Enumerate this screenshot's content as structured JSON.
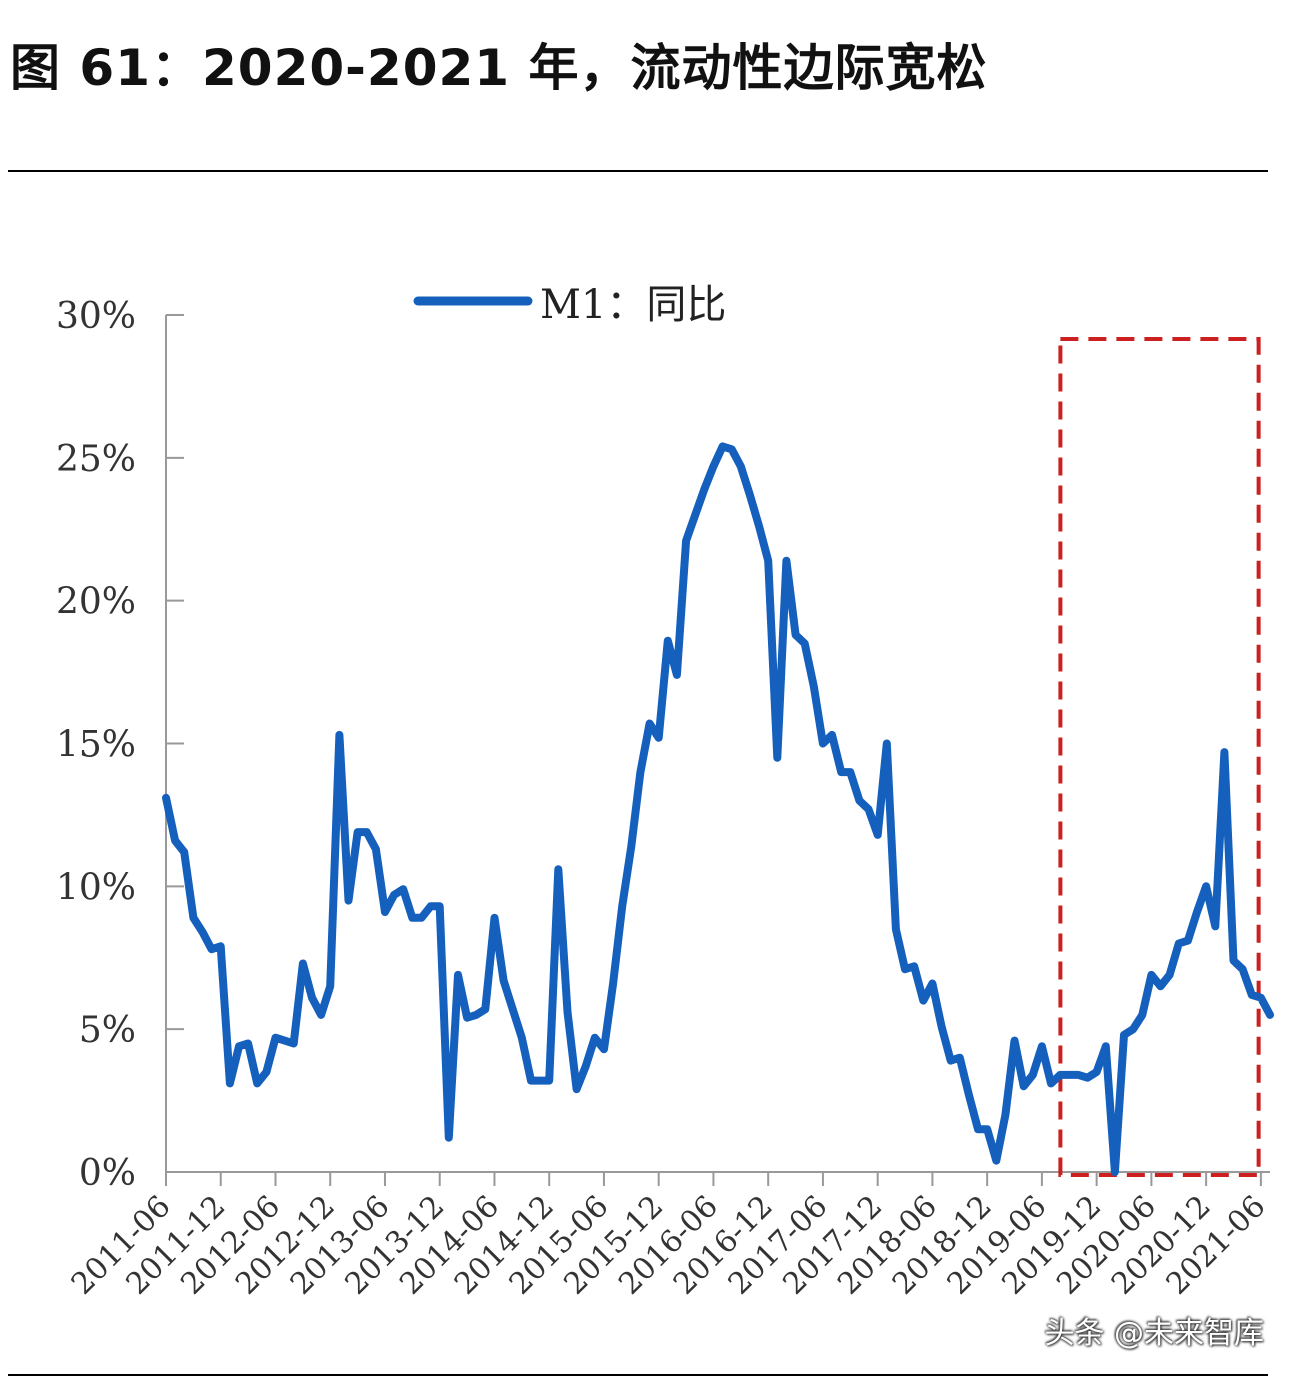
{
  "figure": {
    "title": "图 61：2020-2021 年，流动性边际宽松"
  },
  "watermark": "头条 @未来智库",
  "chart_data": {
    "type": "line",
    "title": "",
    "xlabel": "",
    "ylabel": "",
    "ylim": [
      0,
      0.3
    ],
    "y_ticks": [
      0,
      0.05,
      0.1,
      0.15,
      0.2,
      0.25,
      0.3
    ],
    "y_tick_labels": [
      "0%",
      "5%",
      "10%",
      "15%",
      "20%",
      "25%",
      "30%"
    ],
    "x_tick_labels": [
      "2011-06",
      "2011-12",
      "2012-06",
      "2012-12",
      "2013-06",
      "2013-12",
      "2014-06",
      "2014-12",
      "2015-06",
      "2015-12",
      "2016-06",
      "2016-12",
      "2017-06",
      "2017-12",
      "2018-06",
      "2018-12",
      "2019-06",
      "2019-12",
      "2020-06",
      "2020-12",
      "2021-06"
    ],
    "x_start": "2011-06",
    "legend_position": "top",
    "grid": false,
    "colors": {
      "series": "#1560bd",
      "highlight": "#cc1f1f"
    },
    "highlight_range": [
      "2019-10",
      "2021-04"
    ],
    "series": [
      {
        "name": "M1：同比",
        "values": [
          13.1,
          11.6,
          11.2,
          8.9,
          8.4,
          7.8,
          7.9,
          3.1,
          4.4,
          4.5,
          3.1,
          3.5,
          4.7,
          4.6,
          4.5,
          7.3,
          6.1,
          5.5,
          6.5,
          15.3,
          9.5,
          11.9,
          11.9,
          11.3,
          9.1,
          9.7,
          9.9,
          8.9,
          8.9,
          9.3,
          9.3,
          1.2,
          6.9,
          5.4,
          5.5,
          5.7,
          8.9,
          6.7,
          5.7,
          4.7,
          3.2,
          3.2,
          3.2,
          10.6,
          5.6,
          2.9,
          3.7,
          4.7,
          4.3,
          6.6,
          9.3,
          11.4,
          14.0,
          15.7,
          15.2,
          18.6,
          17.4,
          22.1,
          23.0,
          23.9,
          24.7,
          25.4,
          25.3,
          24.7,
          23.7,
          22.6,
          21.4,
          14.5,
          21.4,
          18.8,
          18.5,
          17.0,
          15.0,
          15.3,
          14.0,
          14.0,
          13.0,
          12.7,
          11.8,
          15.0,
          8.5,
          7.1,
          7.2,
          6.0,
          6.6,
          5.1,
          3.9,
          4.0,
          2.7,
          1.5,
          1.5,
          0.4,
          2.0,
          4.6,
          3.0,
          3.4,
          4.4,
          3.1,
          3.4,
          3.4,
          3.4,
          3.3,
          3.5,
          4.4,
          0.0,
          4.8,
          5.0,
          5.5,
          6.9,
          6.5,
          6.9,
          8.0,
          8.1,
          9.1,
          10.0,
          8.6,
          14.7,
          7.4,
          7.1,
          6.2,
          6.1,
          5.5
        ]
      }
    ]
  }
}
